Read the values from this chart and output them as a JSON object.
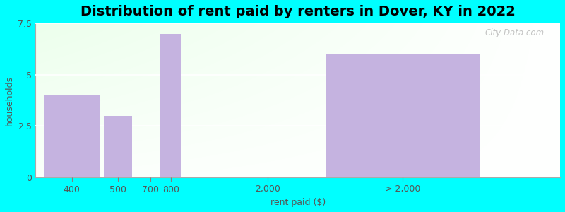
{
  "title": "Distribution of rent paid by renters in Dover, KY in 2022",
  "xlabel": "rent paid ($)",
  "ylabel": "households",
  "categories": [
    "400",
    "500",
    "700",
    "800",
    "2,000",
    "> 2,000"
  ],
  "values": [
    4,
    3,
    0,
    7,
    0,
    6
  ],
  "bar_color": "#c5b3e0",
  "background_color": "#00FFFF",
  "ylim": [
    0,
    7.5
  ],
  "yticks": [
    0,
    2.5,
    5,
    7.5
  ],
  "title_fontsize": 14,
  "axis_label_fontsize": 9,
  "tick_fontsize": 9,
  "watermark": "City-Data.com",
  "bar_lefts": [
    0.0,
    1.5,
    2.5,
    2.9,
    5.5,
    7.0
  ],
  "bar_widths": [
    1.4,
    0.7,
    0.3,
    0.5,
    0.1,
    3.8
  ],
  "tick_positions": [
    0.7,
    1.85,
    2.65,
    3.15,
    5.55,
    8.9
  ],
  "xlim": [
    -0.2,
    12.8
  ]
}
